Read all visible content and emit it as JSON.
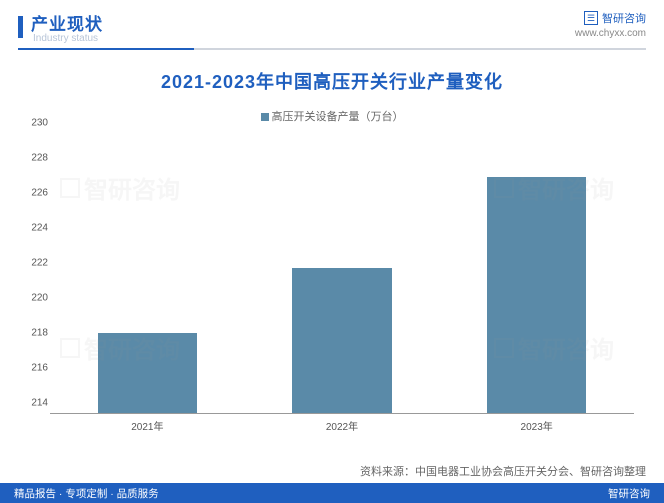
{
  "header": {
    "title": "产业现状",
    "subtitle": "Industry status",
    "brand": "智研咨询",
    "url": "www.chyxx.com"
  },
  "chart": {
    "type": "bar",
    "title": "2021-2023年中国高压开关行业产量变化",
    "legend_label": "高压开关设备产量（万台）",
    "categories": [
      "2021年",
      "2022年",
      "2023年"
    ],
    "values": [
      218.6,
      222.3,
      227.5
    ],
    "ylim": [
      214,
      230
    ],
    "ytick_step": 2,
    "bar_color": "#5a8aa8",
    "bar_width_pct": 17,
    "title_color": "#1f5fbf",
    "title_fontsize": 18,
    "axis_fontsize": 10,
    "background_color": "#ffffff"
  },
  "source": "资料来源：中国电器工业协会高压开关分会、智研咨询整理",
  "footer": {
    "left": "精品报告 · 专项定制 · 品质服务",
    "right": "智研咨询"
  },
  "watermark_text": "智研咨询"
}
